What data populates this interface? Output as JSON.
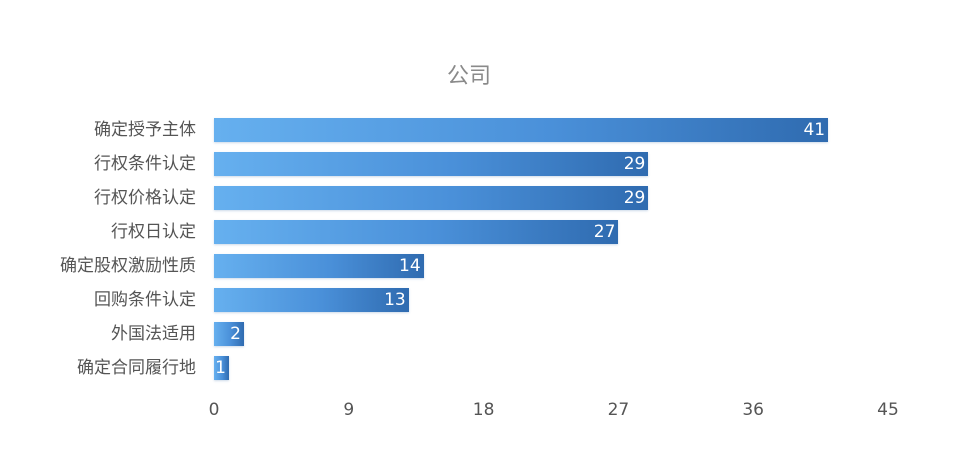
{
  "chart_data": {
    "type": "bar",
    "orientation": "horizontal",
    "title": "公司",
    "categories": [
      "确定授予主体",
      "行权条件认定",
      "行权价格认定",
      "行权日认定",
      "确定股权激励性质",
      "回购条件认定",
      "外国法适用",
      "确定合同履行地"
    ],
    "values": [
      41,
      29,
      29,
      27,
      14,
      13,
      2,
      1
    ],
    "xlabel": "",
    "ylabel": "",
    "xlim": [
      0,
      45
    ],
    "xticks": [
      "0",
      "9",
      "18",
      "27",
      "36",
      "45"
    ],
    "grid": false,
    "legend": null,
    "bar_color": "#4a90d9"
  }
}
